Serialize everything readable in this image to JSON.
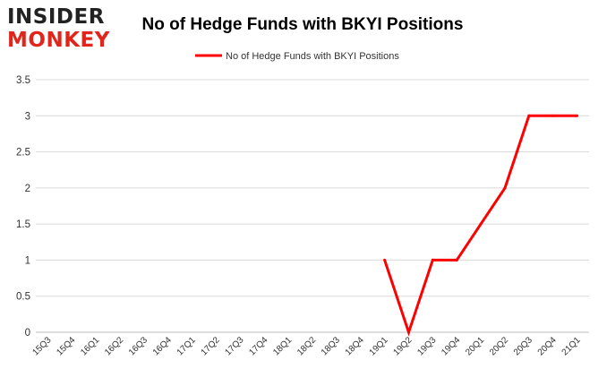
{
  "logo": {
    "line1": "INSIDER",
    "line2": "MONKEY"
  },
  "colors": {
    "series": "#ff0000",
    "logo_dark": "#222222",
    "logo_red": "#e1251b",
    "grid": "#d9d9d9",
    "axis_text": "#333333"
  },
  "chart_data": {
    "type": "line",
    "title": "No of Hedge Funds with BKYI Positions",
    "xlabel": "",
    "ylabel": "",
    "ylim": [
      0,
      3.5
    ],
    "yticks": [
      "0",
      "0.5",
      "1",
      "1.5",
      "2",
      "2.5",
      "3",
      "3.5"
    ],
    "grid": "horizontal",
    "legend_position": "top-center",
    "categories": [
      "15Q3",
      "15Q4",
      "16Q1",
      "16Q2",
      "16Q3",
      "16Q4",
      "17Q1",
      "17Q2",
      "17Q3",
      "17Q4",
      "18Q1",
      "18Q2",
      "18Q3",
      "18Q4",
      "19Q1",
      "19Q2",
      "19Q3",
      "19Q4",
      "20Q1",
      "20Q2",
      "20Q3",
      "20Q4",
      "21Q1"
    ],
    "series": [
      {
        "name": "No of Hedge Funds with BKYI Positions",
        "values": [
          null,
          null,
          null,
          null,
          null,
          null,
          null,
          null,
          null,
          null,
          null,
          null,
          null,
          null,
          1,
          0,
          1,
          1,
          1.5,
          2,
          3,
          3,
          3
        ]
      }
    ]
  }
}
